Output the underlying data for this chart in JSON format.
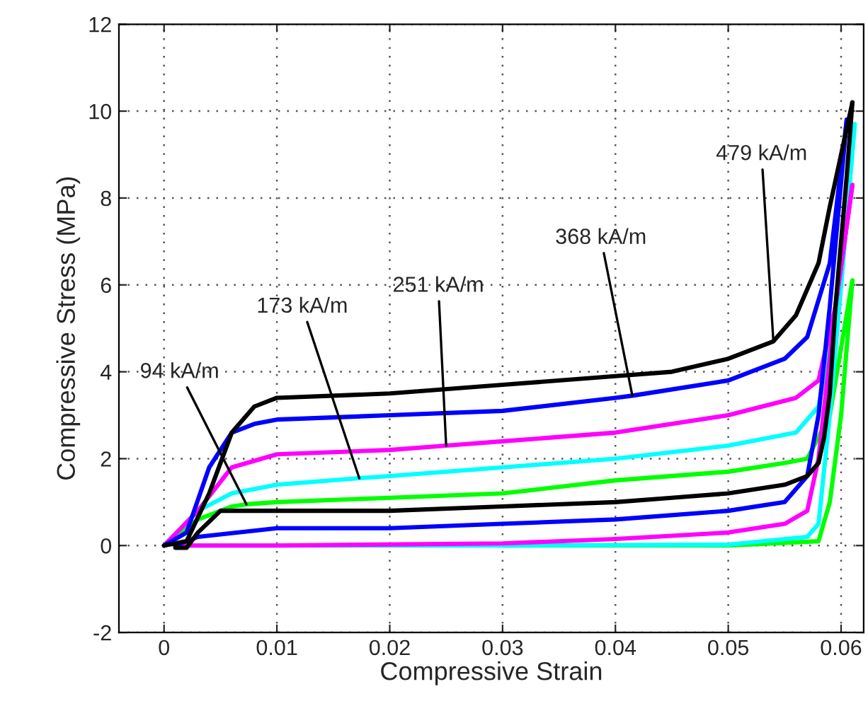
{
  "chart_data": {
    "type": "line",
    "xlabel": "Compressive Strain",
    "ylabel": "Compressive Stress (MPa)",
    "xlim": [
      -0.004,
      0.062
    ],
    "ylim": [
      -2,
      12
    ],
    "xticks": [
      0,
      0.01,
      0.02,
      0.03,
      0.04,
      0.05,
      0.06
    ],
    "yticks": [
      -2,
      0,
      2,
      4,
      6,
      8,
      10,
      12
    ],
    "grid": true,
    "legend": false,
    "marker": "none",
    "line_style": "solid",
    "series": [
      {
        "color": "#00ff00",
        "x": [
          0,
          0.003,
          0.006,
          0.0073,
          0.01,
          0.02,
          0.03,
          0.04,
          0.05,
          0.055,
          0.057,
          0.059,
          0.061
        ],
        "values": [
          0,
          0.6,
          0.9,
          0.95,
          1.0,
          1.1,
          1.2,
          1.5,
          1.7,
          1.9,
          2.0,
          3.0,
          6.1
        ]
      },
      {
        "color": "#00ff00",
        "x": [
          0.061,
          0.06,
          0.059,
          0.058,
          0.05,
          0.03
        ],
        "values": [
          6.1,
          3.0,
          1.0,
          0.1,
          0,
          0
        ]
      },
      {
        "color": "#00ffff",
        "x": [
          0,
          0.003,
          0.006,
          0.01,
          0.0173,
          0.02,
          0.03,
          0.04,
          0.05,
          0.056,
          0.058,
          0.06,
          0.0612
        ],
        "values": [
          0,
          0.8,
          1.2,
          1.4,
          1.55,
          1.6,
          1.8,
          2.0,
          2.3,
          2.6,
          3.2,
          6.0,
          9.7
        ]
      },
      {
        "color": "#00ffff",
        "x": [
          0.0612,
          0.06,
          0.059,
          0.058,
          0.057,
          0.05,
          0.03,
          0.01,
          0.001
        ],
        "values": [
          9.7,
          6.0,
          3.0,
          0.5,
          0.2,
          0.02,
          0,
          0,
          0
        ]
      },
      {
        "color": "#ff00ff",
        "x": [
          0,
          0.003,
          0.006,
          0.01,
          0.02,
          0.025,
          0.03,
          0.04,
          0.05,
          0.056,
          0.058,
          0.0595,
          0.061
        ],
        "values": [
          0,
          0.8,
          1.8,
          2.1,
          2.2,
          2.3,
          2.4,
          2.6,
          3.0,
          3.4,
          3.8,
          5.5,
          8.3
        ]
      },
      {
        "color": "#ff00ff",
        "x": [
          0.061,
          0.0595,
          0.058,
          0.057,
          0.055,
          0.05,
          0.04,
          0.03,
          0.01,
          0.001
        ],
        "values": [
          8.3,
          5.5,
          2.0,
          0.8,
          0.5,
          0.3,
          0.15,
          0.05,
          0,
          0
        ]
      },
      {
        "color": "#0000ff",
        "x": [
          0,
          0.002,
          0.004,
          0.006,
          0.008,
          0.01,
          0.02,
          0.03,
          0.04,
          0.0415,
          0.05,
          0.055,
          0.057,
          0.059,
          0.0605
        ],
        "values": [
          0,
          0.3,
          1.8,
          2.6,
          2.8,
          2.9,
          3.0,
          3.1,
          3.4,
          3.45,
          3.8,
          4.3,
          4.8,
          6.5,
          9.8
        ]
      },
      {
        "color": "#0000ff",
        "x": [
          0.0605,
          0.059,
          0.058,
          0.057,
          0.055,
          0.05,
          0.04,
          0.03,
          0.02,
          0.01,
          0.003,
          0.001
        ],
        "values": [
          9.8,
          5.5,
          3.0,
          1.6,
          1.0,
          0.8,
          0.6,
          0.5,
          0.4,
          0.4,
          0.2,
          0
        ]
      },
      {
        "color": "#000000",
        "x": [
          0,
          0.002,
          0.004,
          0.006,
          0.008,
          0.01,
          0.02,
          0.03,
          0.04,
          0.045,
          0.05,
          0.054,
          0.056,
          0.058,
          0.059,
          0.06,
          0.061
        ],
        "values": [
          0,
          0.1,
          1.2,
          2.6,
          3.2,
          3.4,
          3.5,
          3.7,
          3.9,
          4.0,
          4.3,
          4.7,
          5.3,
          6.5,
          7.8,
          9.0,
          10.2
        ]
      },
      {
        "color": "#000000",
        "x": [
          0.061,
          0.0605,
          0.06,
          0.0595,
          0.059,
          0.0585,
          0.058,
          0.057,
          0.055,
          0.05,
          0.045,
          0.04,
          0.03,
          0.02,
          0.01,
          0.005,
          0.003,
          0.002,
          0.0015,
          0.001
        ],
        "values": [
          10.2,
          8.5,
          7.0,
          5.5,
          3.5,
          2.5,
          1.9,
          1.6,
          1.4,
          1.2,
          1.1,
          1.0,
          0.9,
          0.8,
          0.8,
          0.8,
          0.3,
          -0.05,
          -0.05,
          -0.05
        ]
      }
    ],
    "annotations": [
      {
        "text": "479 kA/m",
        "x": 0.054,
        "y": 4.7
      },
      {
        "text": "368 kA/m",
        "x": 0.0415,
        "y": 3.45
      },
      {
        "text": "251 kA/m",
        "x": 0.025,
        "y": 2.3
      },
      {
        "text": "173 kA/m",
        "x": 0.0173,
        "y": 1.55
      },
      {
        "text": "94 kA/m",
        "x": 0.0073,
        "y": 0.95
      }
    ]
  }
}
